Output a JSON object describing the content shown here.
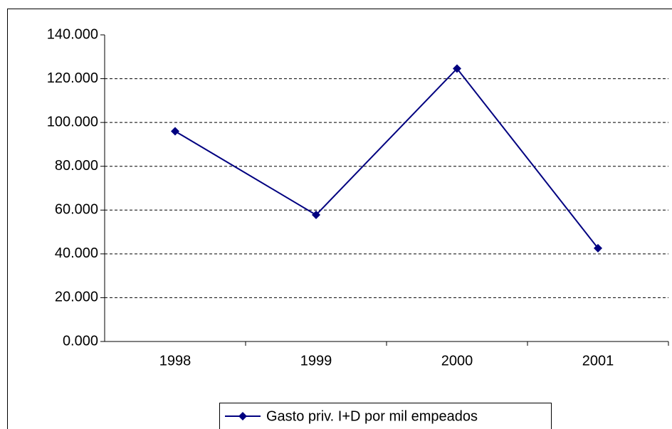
{
  "chart_data": {
    "type": "line",
    "categories": [
      "1998",
      "1999",
      "2000",
      "2001"
    ],
    "series": [
      {
        "name": "Gasto priv. I+D por mil empeados",
        "color": "#000080",
        "values": [
          96,
          57.8,
          124.6,
          42.6
        ]
      }
    ],
    "ylim": [
      0,
      140
    ],
    "yticks": [
      {
        "value": 0,
        "label": "0.000"
      },
      {
        "value": 20,
        "label": "20.000"
      },
      {
        "value": 40,
        "label": "40.000"
      },
      {
        "value": 60,
        "label": "60.000"
      },
      {
        "value": 80,
        "label": "80.000"
      },
      {
        "value": 100,
        "label": "100.000"
      },
      {
        "value": 120,
        "label": "120.000"
      },
      {
        "value": 140,
        "label": "140.000"
      }
    ],
    "grid": true,
    "legend": "bottom"
  }
}
